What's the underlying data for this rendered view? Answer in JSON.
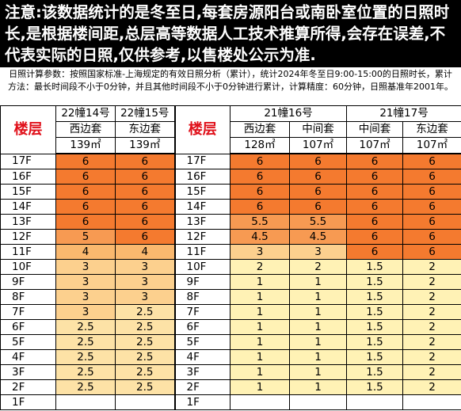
{
  "notice": "注意:该数据统计的是冬至日,每套房源阳台或南卧室位置的日照时长,是根据楼间距,总层高等数据人工技术推算所得,会存在误差,不代表实际的日照,仅供参考,以售楼处公示为准.",
  "params": "日照计算参数：按照国家标准-上海规定的有效日照分析（累计），统计2024年冬至日9:00-15:00的日照时长，累计方法：最长时间段不小于0分钟，并且其他时间段不小于0分钟进行累计，计算精度：60分钟，日照基准年2001年。",
  "table": {
    "floor_label": "楼层",
    "left_buildings": [
      {
        "name": "22幢14号",
        "units": [
          {
            "unit": "西边套",
            "area": "139㎡"
          }
        ]
      },
      {
        "name": "22幢15号",
        "units": [
          {
            "unit": "东边套",
            "area": "139㎡"
          }
        ]
      }
    ],
    "right_buildings": [
      {
        "name": "21幢16号",
        "units": [
          {
            "unit": "西边套",
            "area": "128㎡"
          },
          {
            "unit": "中间套",
            "area": "107㎡"
          }
        ]
      },
      {
        "name": "21幢17号",
        "units": [
          {
            "unit": "中间套",
            "area": "107㎡"
          },
          {
            "unit": "东边套",
            "area": "107㎡"
          }
        ]
      }
    ],
    "cell_colors": {
      "6": "#f47a2f",
      "5.5": "#f79a52",
      "5": "#f79a52",
      "4.5": "#f79a52",
      "4": "#fab86e",
      "3": "#fcd08e",
      "2.5": "#fde2a6",
      "2": "#fff2b5",
      "1.5": "#fff2b5",
      "1": "#fff2b5"
    },
    "rows": [
      {
        "floor": "17F",
        "values": [
          6,
          6,
          6,
          6,
          6,
          6
        ]
      },
      {
        "floor": "16F",
        "values": [
          6,
          6,
          6,
          6,
          6,
          6
        ]
      },
      {
        "floor": "15F",
        "values": [
          6,
          6,
          6,
          6,
          6,
          6
        ]
      },
      {
        "floor": "14F",
        "values": [
          6,
          6,
          6,
          6,
          6,
          6
        ]
      },
      {
        "floor": "13F",
        "values": [
          6,
          6,
          5.5,
          5.5,
          6,
          6
        ]
      },
      {
        "floor": "12F",
        "values": [
          5,
          6,
          4.5,
          4.5,
          6,
          6
        ]
      },
      {
        "floor": "11F",
        "values": [
          4,
          4,
          3,
          3,
          6,
          6
        ]
      },
      {
        "floor": "10F",
        "values": [
          3,
          3,
          2,
          2,
          1.5,
          2
        ]
      },
      {
        "floor": "9F",
        "values": [
          3,
          3,
          1,
          1,
          1.5,
          2
        ]
      },
      {
        "floor": "8F",
        "values": [
          3,
          3,
          1,
          1,
          1.5,
          2
        ]
      },
      {
        "floor": "7F",
        "values": [
          3,
          2.5,
          1,
          1,
          1.5,
          2
        ]
      },
      {
        "floor": "6F",
        "values": [
          2.5,
          2.5,
          1,
          1,
          1.5,
          2
        ]
      },
      {
        "floor": "5F",
        "values": [
          2.5,
          2.5,
          1,
          1,
          1.5,
          2
        ]
      },
      {
        "floor": "4F",
        "values": [
          2.5,
          2.5,
          1,
          1,
          1.5,
          2
        ]
      },
      {
        "floor": "3F",
        "values": [
          2.5,
          2.5,
          1,
          1,
          1.5,
          2
        ]
      },
      {
        "floor": "2F",
        "values": [
          2.5,
          2.5,
          1,
          1,
          1.5,
          2
        ]
      },
      {
        "floor": "1F",
        "values": [
          null,
          null,
          null,
          null,
          null,
          null
        ]
      }
    ]
  }
}
